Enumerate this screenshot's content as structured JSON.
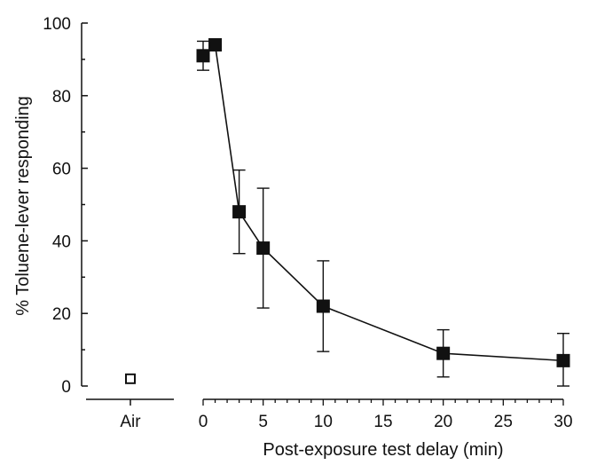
{
  "chart_data": {
    "type": "scatter",
    "xlabel": "Post-exposure test delay (min)",
    "ylabel": "% Toluene-lever responding",
    "ylim": [
      0,
      100
    ],
    "xlim": [
      0,
      30
    ],
    "y_ticks": [
      "0",
      "20",
      "40",
      "60",
      "80",
      "100"
    ],
    "x_ticks": [
      "0",
      "5",
      "10",
      "15",
      "20",
      "25",
      "30"
    ],
    "grid": false,
    "legend": "none",
    "control": {
      "category": "Air",
      "value": 2,
      "error": 1,
      "marker": "open-square"
    },
    "series": [
      {
        "marker": "filled-square",
        "color": "#111111",
        "points": [
          {
            "x": 0,
            "y": 91,
            "err": 4
          },
          {
            "x": 1,
            "y": 94,
            "err": 1
          },
          {
            "x": 3,
            "y": 48,
            "err": 11.5
          },
          {
            "x": 5,
            "y": 38,
            "err": 16.5
          },
          {
            "x": 10,
            "y": 22,
            "err": 12.5
          },
          {
            "x": 20,
            "y": 9,
            "err": 6.5
          },
          {
            "x": 30,
            "y": 7,
            "err": 7.5
          }
        ]
      }
    ]
  }
}
